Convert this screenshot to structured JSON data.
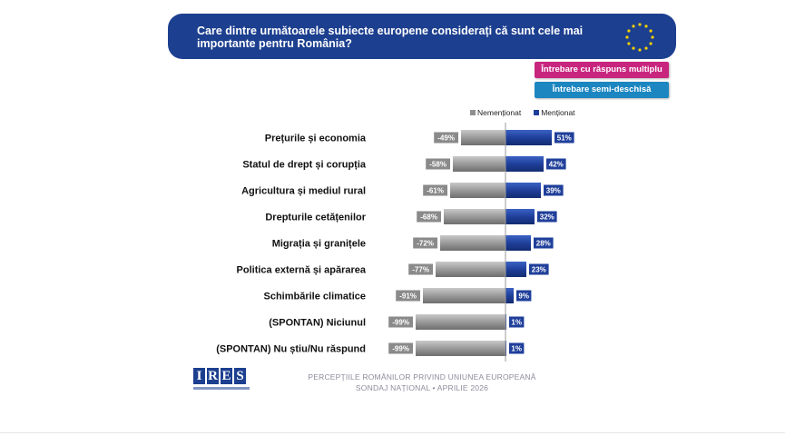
{
  "title": "Care dintre următoarele subiecte europene considerați că sunt cele mai importante pentru România?",
  "tags": {
    "multi": "Întrebare cu răspuns multiplu",
    "semi": "Întrebare semi-deschisă"
  },
  "colors": {
    "banner": "#1c3f8f",
    "multi_tag": "#c8257f",
    "semi_tag": "#1c86c0",
    "mentioned": "#1f3f9a",
    "not_mentioned": "#8f8f8f"
  },
  "icons": {
    "flag": "eu-flag-icon"
  },
  "footer": {
    "logo": "IRES",
    "line1": "PERCEPȚIILE ROMÂNILOR PRIVIND UNIUNEA EUROPEANĂ",
    "line2": "SONDAJ NAȚIONAL • APRILIE 2026"
  },
  "chart_data": {
    "type": "bar",
    "orientation": "horizontal",
    "stacked": "diverging",
    "title": "",
    "xlabel": "",
    "ylabel": "",
    "legend_position": "top-right",
    "grid": false,
    "categories": [
      "Prețurile și economia",
      "Statul de drept și corupția",
      "Agricultura și mediul rural",
      "Drepturile cetățenilor",
      "Migrația și granițele",
      "Politica externă și apărarea",
      "Schimbările climatice",
      "(SPONTAN) Niciunul",
      "(SPONTAN) Nu știu/Nu răspund"
    ],
    "series": [
      {
        "name": "Nemenționat",
        "values": [
          -49,
          -58,
          -61,
          -68,
          -72,
          -77,
          -91,
          -99,
          -99
        ],
        "labels": [
          "-49%",
          "-58%",
          "-61%",
          "-68%",
          "-72%",
          "-77%",
          "-91%",
          "-99%",
          "-99%"
        ]
      },
      {
        "name": "Menționat",
        "values": [
          51,
          42,
          39,
          32,
          28,
          23,
          9,
          1,
          1
        ],
        "labels": [
          "51%",
          "42%",
          "39%",
          "32%",
          "28%",
          "23%",
          "9%",
          "1%",
          "1%"
        ]
      }
    ]
  }
}
